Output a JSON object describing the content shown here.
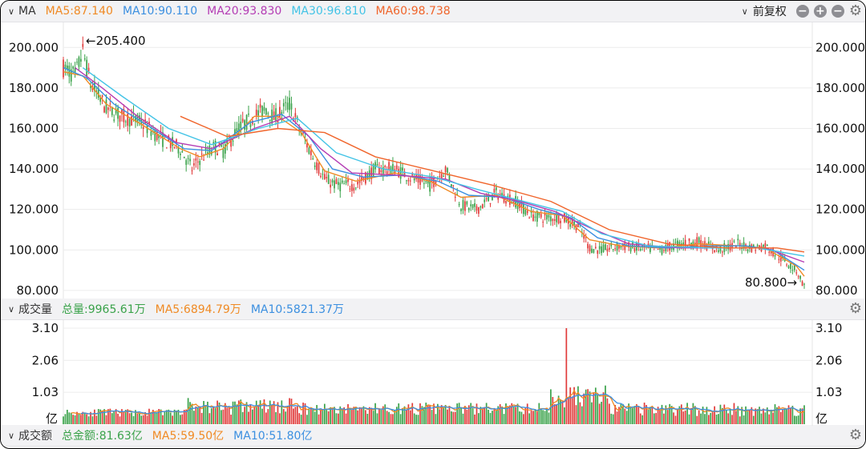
{
  "top_bar": {
    "title": "MA",
    "ma5": "MA5:87.140",
    "ma10": "MA10:90.110",
    "ma20": "MA20:93.830",
    "ma30": "MA30:96.810",
    "ma60": "MA60:98.738",
    "adjust_label": "前复权"
  },
  "volume_bar": {
    "title": "成交量",
    "total": "总量:9965.61万",
    "ma5": "MA5:6894.79万",
    "ma10": "MA10:5821.37万"
  },
  "amount_bar": {
    "title": "成交额",
    "total": "总金额:81.63亿",
    "ma5": "MA5:59.50亿",
    "ma10": "MA10:51.80亿"
  },
  "colors": {
    "up": "#e03a3a",
    "down": "#3aa24a",
    "ma5": "#f08a24",
    "ma10": "#3b8fe0",
    "ma20": "#b43cb4",
    "ma30": "#42c3e6",
    "ma60": "#f0642a"
  },
  "chart_data": [
    {
      "type": "candlestick",
      "title": "MA",
      "y_ticks": [
        "200.000",
        "180.000",
        "160.000",
        "140.000",
        "120.000",
        "100.000",
        "80.000"
      ],
      "ylim": [
        76,
        210
      ],
      "high_annotation": "←205.400",
      "low_annotation": "80.800→",
      "high": 205.4,
      "low": 80.8,
      "close_path": [
        [
          0,
          190
        ],
        [
          6,
          186
        ],
        [
          10,
          198
        ],
        [
          14,
          182
        ],
        [
          22,
          170
        ],
        [
          30,
          166
        ],
        [
          40,
          163
        ],
        [
          50,
          155
        ],
        [
          60,
          150
        ],
        [
          66,
          140
        ],
        [
          70,
          145
        ],
        [
          78,
          151
        ],
        [
          82,
          149
        ],
        [
          90,
          160
        ],
        [
          98,
          166
        ],
        [
          104,
          170
        ],
        [
          108,
          165
        ],
        [
          116,
          172
        ],
        [
          122,
          158
        ],
        [
          128,
          146
        ],
        [
          134,
          135
        ],
        [
          140,
          132
        ],
        [
          150,
          132
        ],
        [
          160,
          140
        ],
        [
          170,
          140
        ],
        [
          180,
          135
        ],
        [
          188,
          132
        ],
        [
          196,
          140
        ],
        [
          204,
          122
        ],
        [
          212,
          120
        ],
        [
          222,
          128
        ],
        [
          232,
          124
        ],
        [
          240,
          117
        ],
        [
          248,
          116
        ],
        [
          256,
          116
        ],
        [
          264,
          112
        ],
        [
          270,
          101
        ],
        [
          276,
          100
        ],
        [
          286,
          102
        ],
        [
          296,
          101
        ],
        [
          306,
          100
        ],
        [
          316,
          103
        ],
        [
          326,
          104
        ],
        [
          336,
          100
        ],
        [
          346,
          103
        ],
        [
          354,
          101
        ],
        [
          360,
          102
        ],
        [
          368,
          96
        ],
        [
          376,
          90
        ],
        [
          380,
          82
        ]
      ],
      "ma_series": [
        {
          "name": "MA5",
          "values": [
            [
              0,
              188
            ],
            [
              10,
              186
            ],
            [
              22,
              172
            ],
            [
              40,
              162
            ],
            [
              60,
              150
            ],
            [
              70,
              146
            ],
            [
              82,
              150
            ],
            [
              98,
              166
            ],
            [
              110,
              166
            ],
            [
              122,
              158
            ],
            [
              134,
              139
            ],
            [
              150,
              134
            ],
            [
              170,
              138
            ],
            [
              188,
              134
            ],
            [
              204,
              126
            ],
            [
              222,
              127
            ],
            [
              240,
              119
            ],
            [
              256,
              117
            ],
            [
              270,
              105
            ],
            [
              286,
              102
            ],
            [
              306,
              101
            ],
            [
              326,
              103
            ],
            [
              346,
              102
            ],
            [
              360,
              101
            ],
            [
              376,
              92
            ],
            [
              380,
              87
            ]
          ]
        },
        {
          "name": "MA10",
          "values": [
            [
              0,
              190
            ],
            [
              12,
              185
            ],
            [
              26,
              172
            ],
            [
              44,
              161
            ],
            [
              62,
              150
            ],
            [
              76,
              149
            ],
            [
              96,
              163
            ],
            [
              112,
              167
            ],
            [
              126,
              156
            ],
            [
              138,
              140
            ],
            [
              154,
              136
            ],
            [
              174,
              137
            ],
            [
              192,
              134
            ],
            [
              208,
              127
            ],
            [
              226,
              126
            ],
            [
              244,
              120
            ],
            [
              260,
              116
            ],
            [
              274,
              106
            ],
            [
              290,
              102
            ],
            [
              310,
              101
            ],
            [
              330,
              102
            ],
            [
              350,
              102
            ],
            [
              364,
              100
            ],
            [
              380,
              90
            ]
          ]
        },
        {
          "name": "MA20",
          "values": [
            [
              6,
              190
            ],
            [
              20,
              180
            ],
            [
              38,
              166
            ],
            [
              58,
              153
            ],
            [
              76,
              150
            ],
            [
              98,
              160
            ],
            [
              116,
              166
            ],
            [
              132,
              150
            ],
            [
              148,
              138
            ],
            [
              170,
              137
            ],
            [
              196,
              135
            ],
            [
              214,
              128
            ],
            [
              234,
              124
            ],
            [
              252,
              119
            ],
            [
              270,
              111
            ],
            [
              290,
              103
            ],
            [
              316,
              101
            ],
            [
              340,
              101
            ],
            [
              360,
              101
            ],
            [
              380,
              94
            ]
          ]
        },
        {
          "name": "MA30",
          "values": [
            [
              10,
              190
            ],
            [
              30,
              176
            ],
            [
              54,
              160
            ],
            [
              76,
              152
            ],
            [
              100,
              160
            ],
            [
              120,
              165
            ],
            [
              140,
              148
            ],
            [
              164,
              140
            ],
            [
              190,
              136
            ],
            [
              212,
              130
            ],
            [
              236,
              124
            ],
            [
              256,
              119
            ],
            [
              276,
              108
            ],
            [
              300,
              102
            ],
            [
              330,
              101
            ],
            [
              356,
              101
            ],
            [
              380,
              97
            ]
          ]
        },
        {
          "name": "MA60",
          "values": [
            [
              60,
              166
            ],
            [
              84,
              156
            ],
            [
              110,
              160
            ],
            [
              134,
              158
            ],
            [
              160,
              146
            ],
            [
              190,
              139
            ],
            [
              220,
              132
            ],
            [
              250,
              124
            ],
            [
              280,
              110
            ],
            [
              310,
              103
            ],
            [
              340,
              101
            ],
            [
              366,
              101
            ],
            [
              380,
              99
            ]
          ]
        }
      ]
    },
    {
      "type": "bar",
      "title": "成交量",
      "unit_label": "亿",
      "y_ticks": [
        "3.10",
        "2.06",
        "1.03"
      ],
      "ylim": [
        0,
        3.1
      ],
      "peak_index": 258,
      "peak_value": 3.1
    }
  ]
}
